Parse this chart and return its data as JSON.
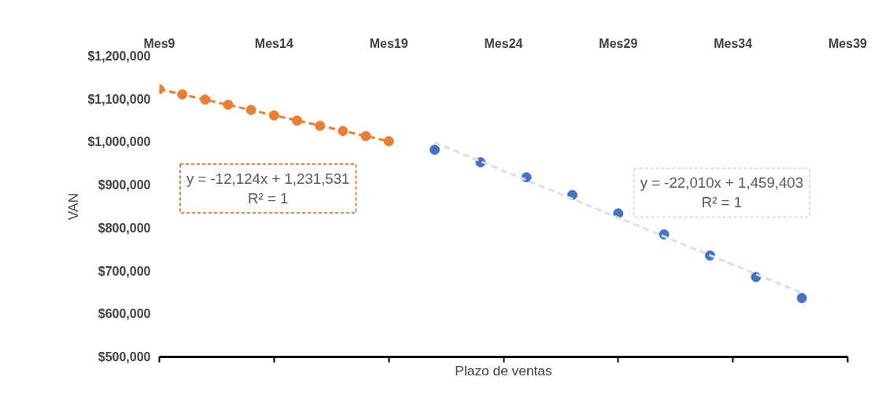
{
  "chart_data": {
    "type": "scatter",
    "xlabel": "Plazo de ventas",
    "ylabel": "VAN",
    "categories": [
      "Mes9",
      null,
      null,
      null,
      null,
      "Mes14",
      null,
      null,
      null,
      null,
      "Mes19",
      null,
      null,
      null,
      null,
      "Mes24",
      null,
      null,
      null,
      null,
      "Mes29",
      null,
      null,
      null,
      null,
      "Mes34",
      null,
      null,
      null,
      null,
      "Mes39"
    ],
    "ylim": [
      500000,
      1200000
    ],
    "yticks": [
      {
        "value": 500000,
        "label": "$500,000"
      },
      {
        "value": 600000,
        "label": "$600,000"
      },
      {
        "value": 700000,
        "label": "$700,000"
      },
      {
        "value": 800000,
        "label": "$800,000"
      },
      {
        "value": 900000,
        "label": "$900,000"
      },
      {
        "value": 1000000,
        "label": "$1,000,000"
      },
      {
        "value": 1100000,
        "label": "$1,100,000"
      },
      {
        "value": 1200000,
        "label": "$1,200,000"
      }
    ],
    "grid": false,
    "marker": "circle",
    "series": [
      {
        "color": "#ed7d31",
        "values": [
          1123000,
          1111000,
          1099000,
          1087000,
          1075000,
          1062000,
          1050000,
          1038000,
          1026000,
          1014000,
          1002000,
          null,
          null,
          null,
          null,
          null,
          null,
          null,
          null,
          null,
          null,
          null,
          null,
          null,
          null,
          null,
          null,
          null,
          null,
          null,
          null
        ]
      },
      {
        "type": "line",
        "line_style": "dashed",
        "marker": "none",
        "color": "#ed7d31",
        "values": [
          1123000,
          null,
          null,
          null,
          null,
          null,
          null,
          null,
          null,
          null,
          1002000,
          null,
          null,
          null,
          null,
          null,
          null,
          null,
          null,
          null,
          null,
          null,
          null,
          null,
          null,
          null,
          null,
          null,
          null,
          null,
          null
        ]
      },
      {
        "color": "#4472c4",
        "values": [
          null,
          null,
          null,
          null,
          null,
          null,
          null,
          null,
          null,
          null,
          null,
          null,
          982000,
          null,
          953000,
          null,
          918000,
          null,
          877000,
          null,
          834000,
          null,
          785000,
          null,
          736000,
          null,
          686000,
          null,
          637000,
          null,
          null
        ]
      },
      {
        "type": "line",
        "line_style": "dashed",
        "marker": "none",
        "color": "#d6def2",
        "values": [
          null,
          null,
          null,
          null,
          null,
          null,
          null,
          null,
          null,
          null,
          null,
          null,
          999000,
          null,
          null,
          null,
          null,
          null,
          null,
          null,
          null,
          null,
          null,
          null,
          null,
          null,
          null,
          null,
          649000,
          null,
          null
        ]
      }
    ],
    "annotations": [
      "y = -12,124x + 1,231,531\nR² = 1",
      "y = -22,010x + 1,459,403\nR² = 1"
    ]
  }
}
